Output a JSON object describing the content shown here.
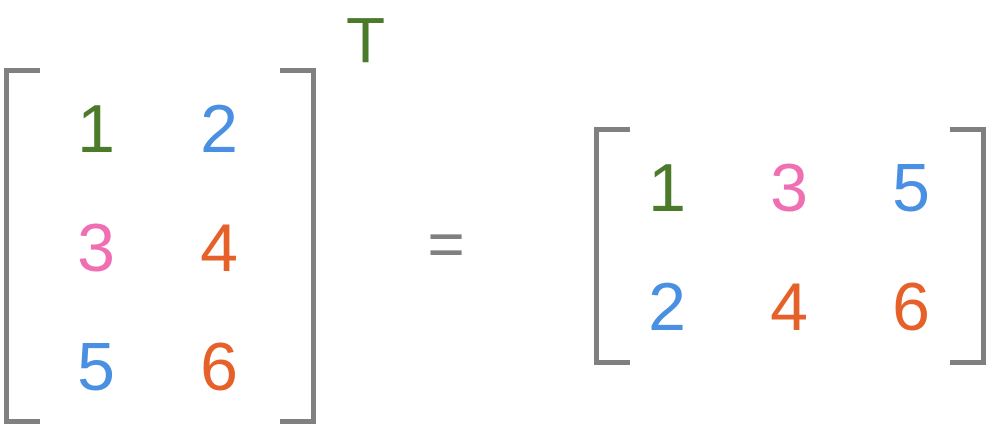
{
  "colors": {
    "bracket": "#808080",
    "green": "#4a7a2a",
    "blue": "#4a90e2",
    "pink": "#f06fb3",
    "orange": "#e6602a"
  },
  "left_matrix": {
    "rows": [
      [
        {
          "value": "1",
          "color": "green"
        },
        {
          "value": "2",
          "color": "blue"
        }
      ],
      [
        {
          "value": "3",
          "color": "pink"
        },
        {
          "value": "4",
          "color": "orange"
        }
      ],
      [
        {
          "value": "5",
          "color": "blue"
        },
        {
          "value": "6",
          "color": "orange"
        }
      ]
    ]
  },
  "superscript": {
    "text": "T",
    "color": "green"
  },
  "operator": {
    "text": "="
  },
  "right_matrix": {
    "rows": [
      [
        {
          "value": "1",
          "color": "green"
        },
        {
          "value": "3",
          "color": "pink"
        },
        {
          "value": "5",
          "color": "blue"
        }
      ],
      [
        {
          "value": "2",
          "color": "blue"
        },
        {
          "value": "4",
          "color": "orange"
        },
        {
          "value": "6",
          "color": "orange"
        }
      ]
    ]
  }
}
